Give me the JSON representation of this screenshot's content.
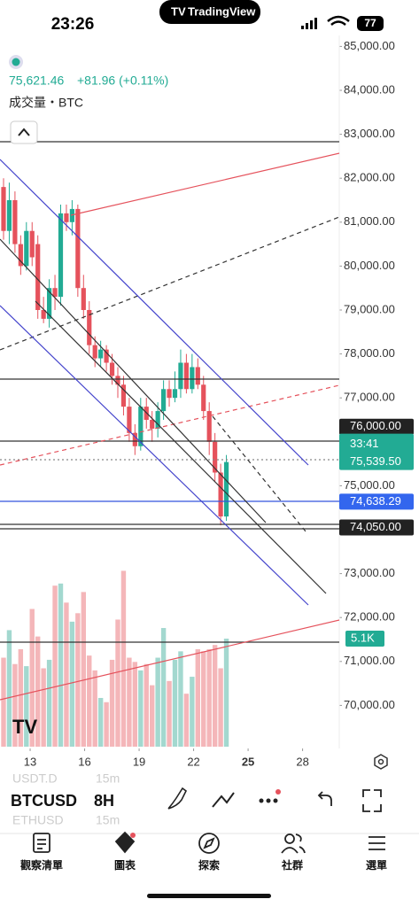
{
  "status_bar": {
    "time": "23:26",
    "app": "TradingView",
    "battery": "77"
  },
  "chart_data": {
    "type": "candlestick",
    "price": "75,621.46",
    "change": "+81.96 (+0.11%)",
    "volume_title": "成交量・BTC",
    "open": [
      81800,
      80800,
      81500,
      80500,
      80000,
      80800,
      80500,
      79000,
      78800,
      79500,
      79300,
      81200,
      81000,
      81300,
      79500,
      79000,
      78200,
      77900,
      78100,
      77800,
      77500,
      77300,
      76800,
      76200,
      75900,
      76800,
      76500,
      76300,
      76700,
      77200,
      77000,
      77200,
      77800,
      77200,
      77700,
      77300,
      76700,
      76000,
      75300,
      74300
    ],
    "high": [
      82000,
      81900,
      81700,
      80700,
      81000,
      81000,
      80700,
      79300,
      79700,
      79800,
      81400,
      81400,
      81500,
      81400,
      79800,
      79200,
      78400,
      78300,
      78200,
      78000,
      77700,
      77500,
      77000,
      76400,
      77000,
      77000,
      76700,
      76900,
      77400,
      77400,
      77600,
      78100,
      78000,
      78000,
      77900,
      77500,
      76900,
      76200,
      75500,
      75700
    ],
    "low": [
      80600,
      80500,
      80300,
      79800,
      79900,
      80000,
      78800,
      78700,
      78600,
      79000,
      79100,
      80800,
      80700,
      79300,
      78800,
      78000,
      77700,
      77700,
      77600,
      77300,
      77000,
      76600,
      76000,
      75700,
      75800,
      76300,
      76000,
      76100,
      76500,
      76800,
      76900,
      77000,
      77100,
      77100,
      77200,
      76500,
      75700,
      75100,
      74100,
      74200
    ],
    "close": [
      80800,
      81500,
      80500,
      80000,
      80800,
      80200,
      79000,
      78800,
      79500,
      79300,
      81200,
      81000,
      81300,
      79500,
      79000,
      78200,
      77900,
      78100,
      77800,
      77500,
      77300,
      76800,
      76200,
      75900,
      76800,
      76500,
      76300,
      76700,
      77200,
      77000,
      77200,
      77800,
      77200,
      77700,
      77300,
      76700,
      76000,
      75300,
      74300,
      75539.5
    ],
    "volume": [
      4.2,
      5.5,
      3.9,
      4.6,
      3.8,
      6.5,
      5.2,
      3.7,
      4.1,
      7.6,
      7.7,
      6.8,
      5.9,
      6.3,
      7.3,
      4.3,
      3.6,
      2.3,
      2.1,
      4.1,
      6.0,
      8.3,
      4.2,
      4.0,
      3.6,
      3.9,
      2.9,
      4.2,
      5.6,
      3.1,
      4.1,
      4.5,
      2.5,
      3.3,
      4.6,
      4.5,
      4.6,
      4.8,
      3.7,
      5.1
    ],
    "volume_lim": [
      0,
      10.2
    ],
    "volume_tag": {
      "value": 5.1,
      "label": "5.1K"
    },
    "ylim": [
      69020,
      85250
    ],
    "yticks": [
      {
        "value": 85000,
        "label": "85,000.00"
      },
      {
        "value": 84000,
        "label": "84,000.00"
      },
      {
        "value": 83000,
        "label": "83,000.00"
      },
      {
        "value": 82000,
        "label": "82,000.00"
      },
      {
        "value": 81000,
        "label": "81,000.00"
      },
      {
        "value": 80000,
        "label": "80,000.00"
      },
      {
        "value": 79000,
        "label": "79,000.00"
      },
      {
        "value": 78000,
        "label": "78,000.00"
      },
      {
        "value": 77000,
        "label": "77,000.00"
      },
      {
        "value": 75000,
        "label": "75,000.00"
      },
      {
        "value": 73000,
        "label": "73,000.00"
      },
      {
        "value": 72000,
        "label": "72,000.00"
      },
      {
        "value": 71000,
        "label": "71,000.00"
      },
      {
        "value": 70000,
        "label": "70,000.00"
      }
    ],
    "xlim": [
      11.34,
      30.02
    ],
    "xticks": [
      13,
      16,
      19,
      22,
      25,
      28
    ],
    "price_tags": [
      {
        "value": 76000,
        "label": "76,000.00"
      },
      {
        "value": 75539.5,
        "label": "75,539.50",
        "countdown": "33:41"
      },
      {
        "value": 74638.29,
        "label": "74,638.29"
      },
      {
        "value": 74050,
        "label": "74,050.00"
      }
    ],
    "colors": {
      "up": "#22ab94",
      "down": "#e5525c",
      "up_volume": "#a3d8cf",
      "down_volume": "#f4b6b9"
    }
  },
  "toolbar": {
    "watch_items": [
      {
        "symbol": "USDT.D",
        "interval": "15m"
      },
      {
        "symbol": "ETHUSD",
        "interval": "15m"
      }
    ],
    "symbol": "BTCUSD",
    "interval": "8H"
  },
  "tabs": [
    "觀察清單",
    "圖表",
    "探索",
    "社群",
    "選單"
  ]
}
